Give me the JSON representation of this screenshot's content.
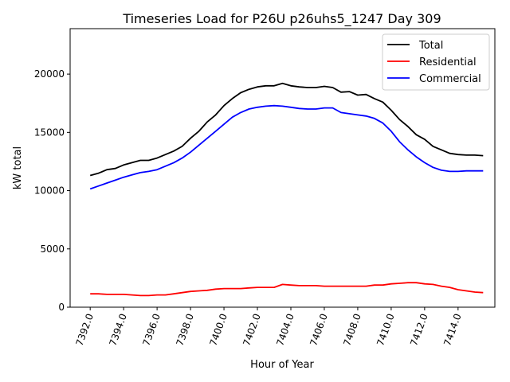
{
  "chart_data": {
    "type": "line",
    "title": "Timeseries Load for P26U p26uhs5_1247  Day 309",
    "xlabel": "Hour of Year",
    "ylabel": "kW total",
    "xlim": [
      7390.8,
      7416.2
    ],
    "ylim": [
      0,
      23900
    ],
    "grid": false,
    "legend_position": "top-right",
    "x_ticks": [
      7392.0,
      7394.0,
      7396.0,
      7398.0,
      7400.0,
      7402.0,
      7404.0,
      7406.0,
      7408.0,
      7410.0,
      7412.0,
      7414.0
    ],
    "x_tick_labels": [
      "7392.0",
      "7394.0",
      "7396.0",
      "7398.0",
      "7400.0",
      "7402.0",
      "7404.0",
      "7406.0",
      "7408.0",
      "7410.0",
      "7412.0",
      "7414.0"
    ],
    "y_ticks": [
      0,
      5000,
      10000,
      15000,
      20000
    ],
    "y_tick_labels": [
      "0",
      "5000",
      "10000",
      "15000",
      "20000"
    ],
    "x": [
      7392.0,
      7392.5,
      7393.0,
      7393.5,
      7394.0,
      7394.5,
      7395.0,
      7395.5,
      7396.0,
      7396.5,
      7397.0,
      7397.5,
      7398.0,
      7398.5,
      7399.0,
      7399.5,
      7400.0,
      7400.5,
      7401.0,
      7401.5,
      7402.0,
      7402.5,
      7403.0,
      7403.5,
      7404.0,
      7404.5,
      7405.0,
      7405.5,
      7406.0,
      7406.5,
      7407.0,
      7407.5,
      7408.0,
      7408.5,
      7409.0,
      7409.5,
      7410.0,
      7410.5,
      7411.0,
      7411.5,
      7412.0,
      7412.5,
      7413.0,
      7413.5,
      7414.0,
      7414.5,
      7415.0,
      7415.5
    ],
    "series": [
      {
        "name": "Total",
        "color": "#000000",
        "values": [
          11300,
          11500,
          11800,
          11900,
          12200,
          12400,
          12600,
          12600,
          12800,
          13100,
          13400,
          13800,
          14500,
          15100,
          15900,
          16500,
          17300,
          17900,
          18400,
          18700,
          18900,
          19000,
          19000,
          19200,
          19000,
          18900,
          18850,
          18850,
          18950,
          18850,
          18450,
          18500,
          18200,
          18250,
          17900,
          17600,
          16900,
          16100,
          15500,
          14800,
          14400,
          13800,
          13500,
          13200,
          13100,
          13050,
          13050,
          13000
        ]
      },
      {
        "name": "Residential",
        "color": "#ff0000",
        "values": [
          1150,
          1150,
          1100,
          1100,
          1100,
          1050,
          1000,
          1000,
          1050,
          1050,
          1150,
          1250,
          1350,
          1400,
          1450,
          1550,
          1600,
          1600,
          1600,
          1650,
          1700,
          1700,
          1700,
          1950,
          1900,
          1850,
          1850,
          1850,
          1800,
          1800,
          1800,
          1800,
          1800,
          1800,
          1900,
          1900,
          2000,
          2050,
          2100,
          2100,
          2000,
          1950,
          1800,
          1700,
          1500,
          1400,
          1300,
          1250
        ]
      },
      {
        "name": "Commercial",
        "color": "#0000ff",
        "values": [
          10150,
          10400,
          10650,
          10900,
          11150,
          11350,
          11550,
          11650,
          11800,
          12100,
          12400,
          12800,
          13300,
          13900,
          14500,
          15100,
          15700,
          16300,
          16700,
          17000,
          17150,
          17250,
          17300,
          17250,
          17150,
          17050,
          17000,
          17000,
          17100,
          17100,
          16700,
          16600,
          16500,
          16400,
          16200,
          15800,
          15100,
          14200,
          13500,
          12900,
          12400,
          12000,
          11750,
          11650,
          11650,
          11700,
          11700,
          11700
        ]
      }
    ]
  }
}
